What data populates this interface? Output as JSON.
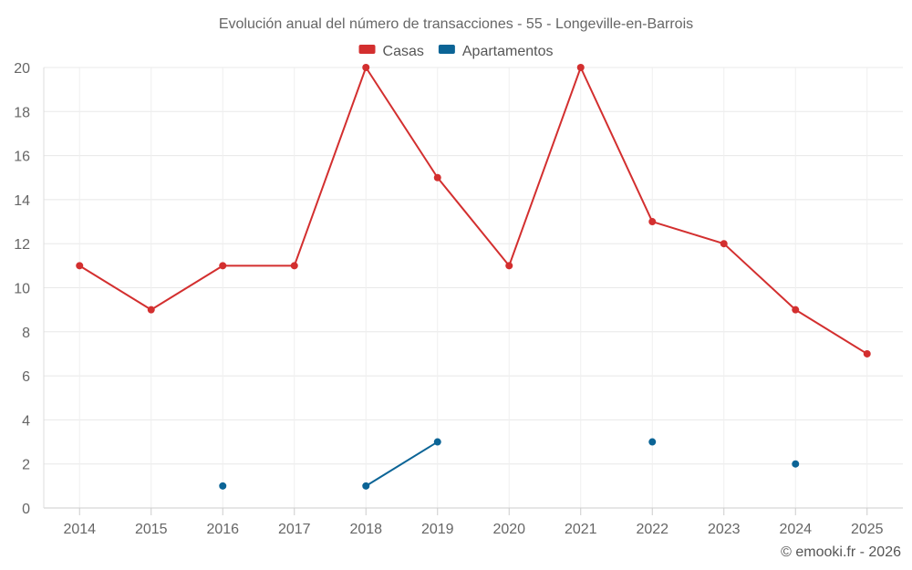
{
  "chart_data": {
    "type": "line",
    "title": "Evolución anual del número de transacciones - 55 - Longeville-en-Barrois",
    "xlabel": "",
    "ylabel": "",
    "categories": [
      "2014",
      "2015",
      "2016",
      "2017",
      "2018",
      "2019",
      "2020",
      "2021",
      "2022",
      "2023",
      "2024",
      "2025"
    ],
    "ylim": [
      0,
      20
    ],
    "yticks": [
      0,
      2,
      4,
      6,
      8,
      10,
      12,
      14,
      16,
      18,
      20
    ],
    "grid": true,
    "legend_position": "top-center",
    "series": [
      {
        "name": "Casas",
        "color": "#d32f2f",
        "values": [
          11,
          9,
          11,
          11,
          20,
          15,
          11,
          20,
          13,
          12,
          9,
          7
        ]
      },
      {
        "name": "Apartamentos",
        "color": "#0b6496",
        "values": [
          null,
          null,
          1,
          null,
          1,
          3,
          null,
          null,
          3,
          null,
          2,
          null
        ]
      }
    ]
  },
  "credit": "© emooki.fr - 2026"
}
